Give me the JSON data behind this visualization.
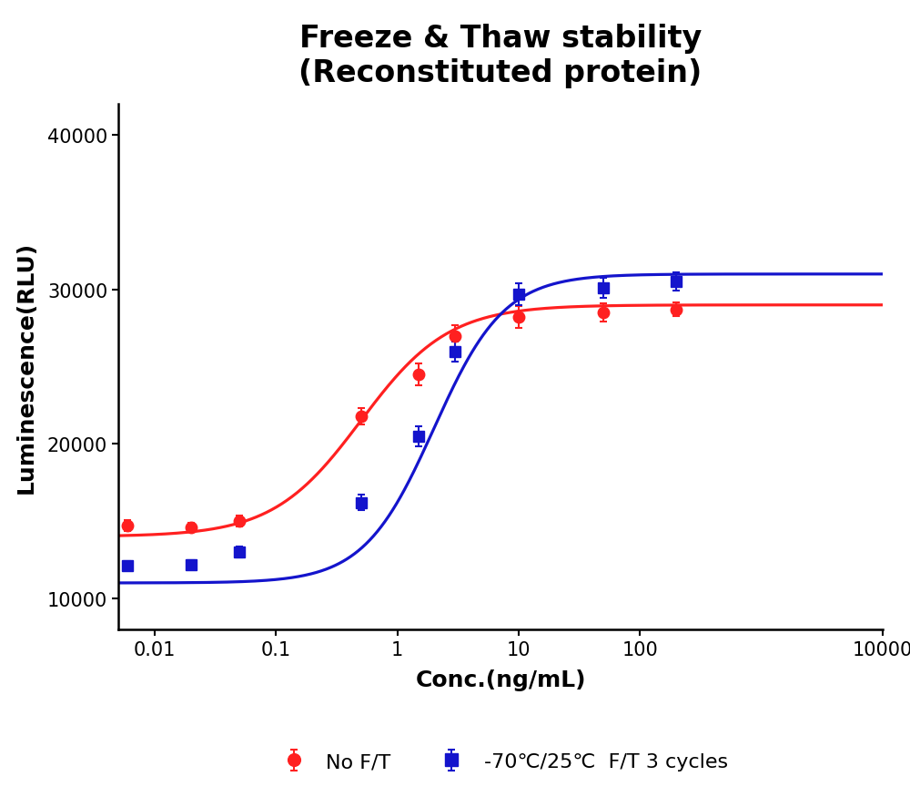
{
  "title_line1": "Freeze & Thaw stability",
  "title_line2": "(Reconstituted protein)",
  "xlabel": "Conc.(ng/mL)",
  "ylabel": "Luminescence(RLU)",
  "xlim_log": [
    -2.3,
    4
  ],
  "ylim": [
    8000,
    42000
  ],
  "yticks": [
    10000,
    20000,
    30000,
    40000
  ],
  "red_x": [
    0.006,
    0.02,
    0.05,
    0.5,
    1.5,
    3,
    10,
    50,
    200
  ],
  "red_y": [
    14700,
    14600,
    15000,
    21800,
    24500,
    27000,
    28200,
    28500,
    28700
  ],
  "red_yerr": [
    350,
    300,
    350,
    550,
    700,
    700,
    700,
    600,
    450
  ],
  "blue_x": [
    0.006,
    0.02,
    0.05,
    0.5,
    1.5,
    3,
    10,
    50,
    200
  ],
  "blue_y": [
    12100,
    12200,
    13000,
    16200,
    20500,
    26000,
    29700,
    30100,
    30500
  ],
  "blue_yerr": [
    300,
    250,
    350,
    500,
    650,
    650,
    700,
    650,
    600
  ],
  "red_color": "#FF2020",
  "blue_color": "#1414CC",
  "legend_red_label": "No F/T",
  "legend_blue_label": "-70℃/25℃  F/T 3 cycles",
  "title_fontsize": 24,
  "axis_label_fontsize": 18,
  "tick_fontsize": 15,
  "legend_fontsize": 16,
  "xticks": [
    0.01,
    0.1,
    1,
    10,
    100,
    10000
  ],
  "xticklabels": [
    "0.01",
    "0.1",
    "1",
    "10",
    "100",
    "10000"
  ]
}
